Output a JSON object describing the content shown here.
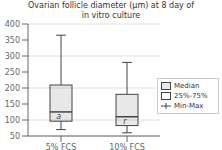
{
  "chart_data": {
    "type": "box",
    "title": "Ovarian follicle diameter (μm) at 8 day of\nin vitro culture",
    "categories": [
      "5% FCS",
      "10% FCS"
    ],
    "boxes": [
      {
        "min": 70.0,
        "q1": 96.2,
        "median": 125.27,
        "q3": 209.31,
        "max": 365.0,
        "label": "a"
      },
      {
        "min": 60.0,
        "q1": 82.54,
        "median": 110.11,
        "q3": 180.23,
        "max": 280.0,
        "label": "r"
      }
    ],
    "legend_labels": [
      "Median",
      "25%-75%",
      "Min-Max"
    ],
    "legend": "right",
    "ylim": [
      50,
      400
    ],
    "yticks": [
      50,
      100,
      150,
      200,
      250,
      300,
      350,
      400
    ],
    "grid": true,
    "color": "#444444"
  }
}
